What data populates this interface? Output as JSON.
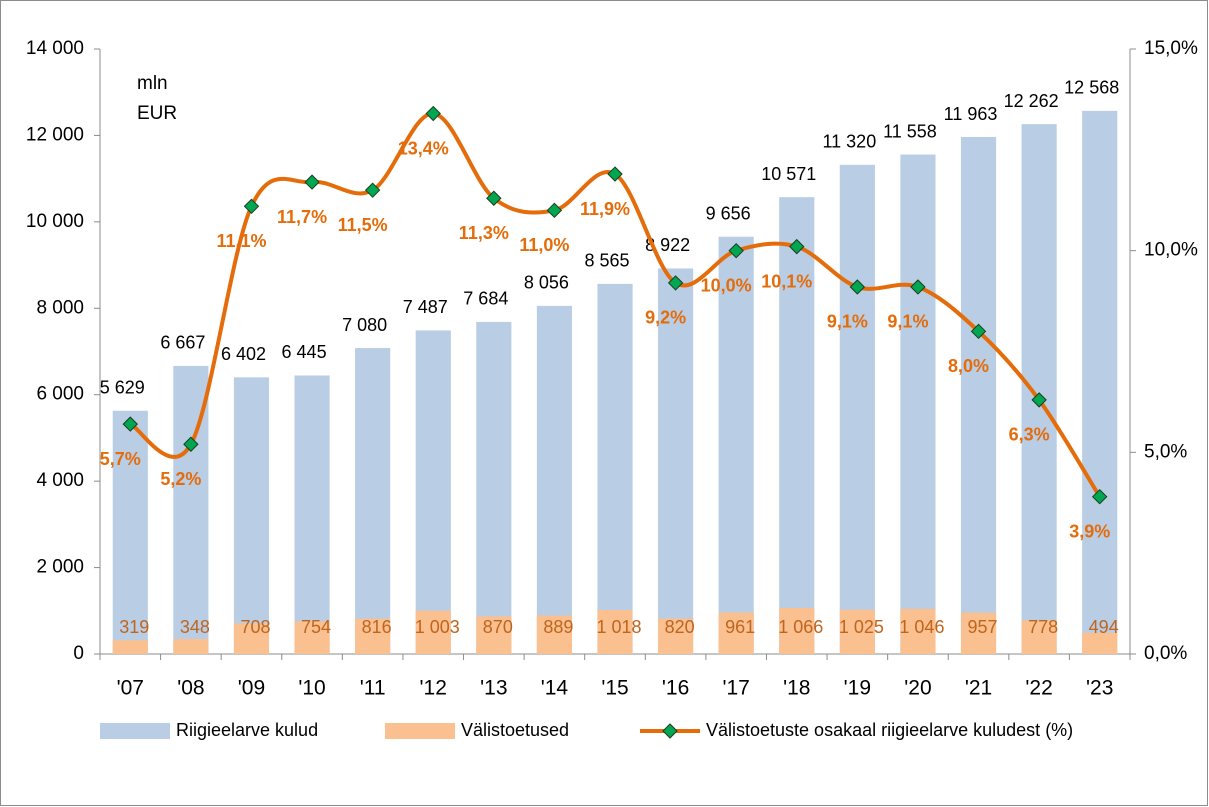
{
  "chart_data": {
    "type": "bar_line",
    "annotations": [
      "mln",
      "EUR"
    ],
    "categories": [
      "'07",
      "'08",
      "'09",
      "'10",
      "'11",
      "'12",
      "'13",
      "'14",
      "'15",
      "'16",
      "'17",
      "'18",
      "'19",
      "'20",
      "'21",
      "'22",
      "'23"
    ],
    "series": [
      {
        "name": "Riigieelarve kulud",
        "type": "bar",
        "color": "#b9cde5",
        "values": [
          5629,
          6667,
          6402,
          6445,
          7080,
          7487,
          7684,
          8056,
          8565,
          8922,
          9656,
          10571,
          11320,
          11558,
          11963,
          12262,
          12568
        ],
        "value_labels": [
          "5 629",
          "6 667",
          "6 402",
          "6 445",
          "7 080",
          "7 487",
          "7 684",
          "8 056",
          "8 565",
          "8 922",
          "9 656",
          "10 571",
          "11 320",
          "11 558",
          "11 963",
          "12 262",
          "12 568"
        ]
      },
      {
        "name": "Välistoetused",
        "type": "bar",
        "color": "#fac090",
        "values": [
          319,
          348,
          708,
          754,
          816,
          1003,
          870,
          889,
          1018,
          820,
          961,
          1066,
          1025,
          1046,
          957,
          778,
          494
        ],
        "value_labels": [
          "319",
          "348",
          "708",
          "754",
          "816",
          "1 003",
          "870",
          "889",
          "1 018",
          "820",
          "961",
          "1 066",
          "1 025",
          "1 046",
          "957",
          "778",
          "494"
        ]
      },
      {
        "name": "Välistoetuste osakaal riigieelarve kuludest (%)",
        "type": "line",
        "axis": "y2",
        "color": "#e46c0a",
        "marker_color": "#00a651",
        "values": [
          5.7,
          5.2,
          11.1,
          11.7,
          11.5,
          13.4,
          11.3,
          11.0,
          11.9,
          9.2,
          10.0,
          10.1,
          9.1,
          9.1,
          8.0,
          6.3,
          3.9
        ],
        "value_labels": [
          "5,7%",
          "5,2%",
          "11,1%",
          "11,7%",
          "11,5%",
          "13,4%",
          "11,3%",
          "11,0%",
          "11,9%",
          "9,2%",
          "10,0%",
          "10,1%",
          "9,1%",
          "9,1%",
          "8,0%",
          "6,3%",
          "3,9%"
        ]
      }
    ],
    "ylim": [
      0,
      14000
    ],
    "yticks": [
      0,
      {
        "value": 2000,
        "label": "2 000"
      },
      {
        "value": 4000,
        "label": "4 000"
      },
      {
        "value": 6000,
        "label": "6 000"
      },
      {
        "value": 8000,
        "label": "8 000"
      },
      {
        "value": 10000,
        "label": "10 000"
      },
      {
        "value": 12000,
        "label": "12 000"
      },
      {
        "value": 14000,
        "label": "14 000"
      }
    ],
    "y2lim": [
      0,
      15
    ],
    "y2ticks": [
      {
        "value": 0,
        "label": "0,0%"
      },
      {
        "value": 5,
        "label": "5,0%"
      },
      {
        "value": 10,
        "label": "10,0%"
      },
      {
        "value": 15,
        "label": "15,0%"
      }
    ],
    "grid": false,
    "legend": "bottom"
  }
}
